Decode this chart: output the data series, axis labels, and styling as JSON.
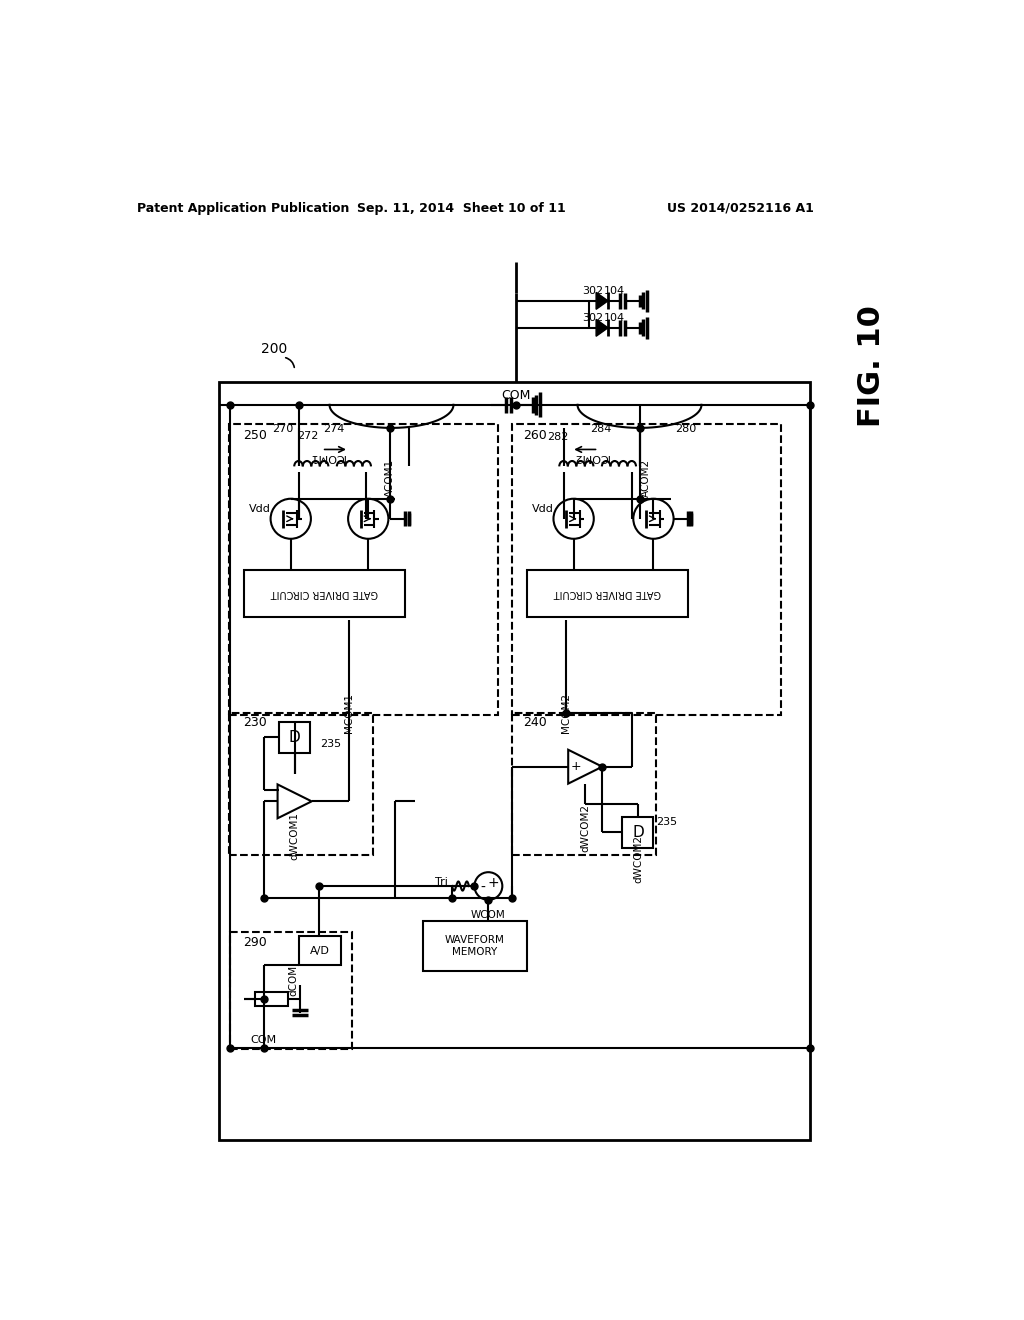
{
  "header_left": "Patent Application Publication",
  "header_center": "Sep. 11, 2014  Sheet 10 of 11",
  "header_right": "US 2014/0252116 A1",
  "fig_label": "FIG. 10",
  "background": "#ffffff"
}
